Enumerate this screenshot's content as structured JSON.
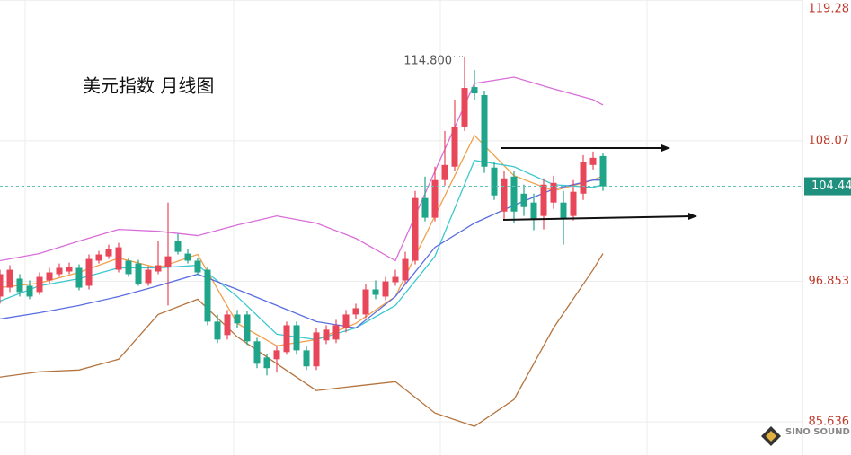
{
  "chart_data": {
    "type": "candlestick",
    "title": "美元指数  月线图",
    "ylim": [
      83,
      119.3
    ],
    "yticks": [
      119.28,
      108.07,
      96.853,
      85.636
    ],
    "grid": true,
    "up_color": "#e8475a",
    "down_color": "#1fa58a",
    "candles": {
      "open": [
        95.64,
        96.35,
        97.07,
        96.5,
        96.0,
        96.93,
        97.43,
        97.64,
        97.93,
        96.5,
        98.5,
        98.85,
        97.78,
        98.5,
        98.28,
        96.71,
        97.64,
        98.0,
        100.07,
        99.07,
        98.5,
        97.78,
        93.64,
        92.57,
        94.21,
        94.21,
        92.07,
        90.78,
        90.64,
        91.21,
        93.35,
        91.35,
        90.07,
        92.14,
        92.21,
        93.14,
        94.21,
        94.21,
        96.21,
        95.64,
        96.78,
        96.93,
        98.5,
        103.5,
        101.93,
        104.93,
        106.0,
        109.21,
        112.35,
        111.71,
        105.93,
        102.42,
        105.21,
        103.85,
        103.14,
        102.07,
        103.14,
        103.14,
        102.07,
        103.85,
        106.14,
        106.85
      ],
      "high": [
        97.78,
        98.14,
        97.43,
        96.93,
        97.57,
        97.93,
        98.28,
        98.35,
        98.21,
        99.0,
        99.28,
        99.78,
        99.93,
        98.71,
        98.57,
        98.07,
        100.07,
        103.14,
        100.64,
        99.43,
        98.71,
        98.0,
        94.21,
        94.57,
        94.57,
        94.5,
        92.35,
        91.07,
        91.71,
        93.64,
        93.64,
        91.71,
        93.14,
        93.35,
        93.78,
        94.57,
        95.07,
        96.64,
        96.93,
        97.21,
        97.78,
        99.21,
        104.07,
        105.21,
        106.0,
        108.85,
        111.35,
        114.8,
        113.71,
        112.07,
        106.35,
        105.64,
        105.64,
        104.57,
        103.85,
        105.07,
        105.28,
        104.07,
        104.93,
        106.92,
        107.21,
        107.07
      ],
      "low": [
        95.07,
        96.0,
        95.64,
        95.43,
        95.78,
        96.64,
        97.21,
        97.43,
        96.14,
        96.21,
        98.28,
        98.64,
        97.57,
        97.21,
        96.5,
        96.5,
        97.43,
        94.93,
        99.0,
        98.28,
        97.35,
        93.35,
        91.93,
        92.21,
        93.14,
        91.78,
        89.93,
        89.35,
        89.57,
        91.0,
        91.0,
        89.78,
        89.78,
        91.85,
        91.93,
        92.78,
        93.85,
        93.92,
        95.43,
        95.35,
        96.5,
        96.64,
        98.21,
        101.64,
        101.64,
        104.5,
        105.64,
        108.85,
        111.35,
        105.5,
        103.35,
        101.71,
        101.5,
        102.07,
        100.93,
        101.0,
        102.64,
        99.78,
        101.71,
        103.35,
        105.78,
        104.07
      ],
      "close": [
        97.43,
        97.78,
        96.0,
        95.64,
        97.21,
        97.57,
        97.93,
        98.0,
        96.35,
        98.64,
        99.0,
        99.43,
        99.57,
        97.43,
        96.64,
        97.78,
        98.14,
        98.85,
        99.21,
        98.5,
        97.57,
        93.64,
        92.21,
        94.21,
        93.5,
        92.07,
        90.28,
        89.93,
        91.35,
        93.35,
        91.35,
        90.07,
        92.78,
        93.0,
        93.35,
        94.21,
        94.71,
        96.21,
        95.78,
        96.85,
        97.21,
        98.64,
        103.5,
        101.93,
        104.93,
        106.14,
        109.21,
        112.28,
        111.85,
        106.0,
        103.71,
        105.07,
        102.42,
        102.78,
        101.85,
        104.57,
        104.71,
        101.85,
        104.0,
        106.35,
        106.71,
        104.44
      ]
    },
    "line_x": [
      0,
      4,
      8,
      12,
      16,
      20,
      24,
      28,
      32,
      36,
      40,
      44,
      48,
      52,
      56,
      60,
      61
    ],
    "lines": [
      {
        "color": "#d86fd8",
        "values": [
          98.5,
          99.07,
          100.07,
          101.0,
          100.85,
          100.5,
          101.35,
          102.07,
          101.5,
          100.28,
          98.5,
          105.64,
          112.64,
          113.14,
          112.21,
          111.35,
          110.93
        ]
      },
      {
        "color": "#f0a04b",
        "values": [
          96.35,
          96.71,
          97.57,
          98.71,
          97.93,
          99.0,
          93.5,
          91.71,
          92.21,
          93.5,
          95.64,
          102.07,
          108.5,
          105.28,
          104.07,
          104.93,
          105.28
        ]
      },
      {
        "color": "#3cc8d0",
        "values": [
          95.28,
          96.5,
          97.07,
          97.93,
          97.93,
          98.14,
          95.64,
          92.64,
          92.21,
          93.14,
          94.93,
          98.85,
          106.5,
          106.0,
          104.57,
          104.35,
          104.57
        ]
      },
      {
        "color": "#5b6ee0",
        "values": [
          93.85,
          94.35,
          94.93,
          95.64,
          96.5,
          97.43,
          96.21,
          94.93,
          93.64,
          93.14,
          95.64,
          99.57,
          101.5,
          102.93,
          104.21,
          104.93,
          104.93
        ]
      },
      {
        "color": "#b5743e",
        "values": [
          89.21,
          89.64,
          89.78,
          90.64,
          94.21,
          95.43,
          92.43,
          90.28,
          88.14,
          88.5,
          88.85,
          86.35,
          85.28,
          87.43,
          93.14,
          97.78,
          99.07
        ]
      }
    ],
    "annotation": {
      "text": "114.800",
      "value": 114.8
    },
    "last_price": 104.44,
    "watermark": "SINO SOUND"
  }
}
